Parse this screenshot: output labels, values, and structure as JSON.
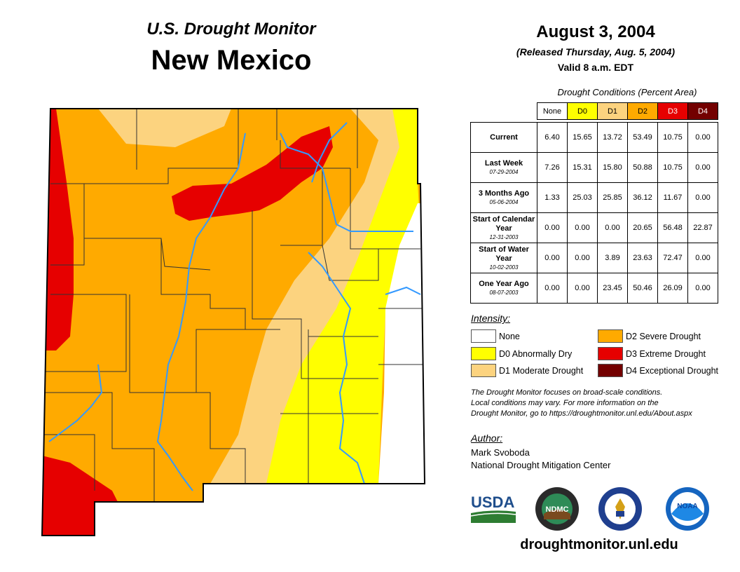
{
  "header": {
    "subtitle": "U.S. Drought Monitor",
    "state": "New Mexico",
    "date": "August 3, 2004",
    "released": "(Released Thursday, Aug. 5, 2004)",
    "valid": "Valid 8 a.m. EDT"
  },
  "table": {
    "caption": "Drought Conditions (Percent Area)",
    "columns": [
      {
        "label": "None",
        "color": "#ffffff"
      },
      {
        "label": "D0",
        "color": "#ffff00"
      },
      {
        "label": "D1",
        "color": "#fcd37f"
      },
      {
        "label": "D2",
        "color": "#ffaa00"
      },
      {
        "label": "D3",
        "color": "#e60000"
      },
      {
        "label": "D4",
        "color": "#730000"
      }
    ],
    "rows": [
      {
        "label": "Current",
        "date": "",
        "values": [
          "6.40",
          "15.65",
          "13.72",
          "53.49",
          "10.75",
          "0.00"
        ]
      },
      {
        "label": "Last Week",
        "date": "07-29-2004",
        "values": [
          "7.26",
          "15.31",
          "15.80",
          "50.88",
          "10.75",
          "0.00"
        ]
      },
      {
        "label": "3 Months Ago",
        "date": "05-06-2004",
        "values": [
          "1.33",
          "25.03",
          "25.85",
          "36.12",
          "11.67",
          "0.00"
        ]
      },
      {
        "label": "Start of Calendar Year",
        "date": "12-31-2003",
        "values": [
          "0.00",
          "0.00",
          "0.00",
          "20.65",
          "56.48",
          "22.87"
        ]
      },
      {
        "label": "Start of Water Year",
        "date": "10-02-2003",
        "values": [
          "0.00",
          "0.00",
          "3.89",
          "23.63",
          "72.47",
          "0.00"
        ]
      },
      {
        "label": "One Year Ago",
        "date": "08-07-2003",
        "values": [
          "0.00",
          "0.00",
          "23.45",
          "50.46",
          "26.09",
          "0.00"
        ]
      }
    ]
  },
  "legend": {
    "title": "Intensity:",
    "items": [
      {
        "label": "None",
        "color": "#ffffff"
      },
      {
        "label": "D0 Abnormally Dry",
        "color": "#ffff00"
      },
      {
        "label": "D1 Moderate Drought",
        "color": "#fcd37f"
      },
      {
        "label": "D2 Severe Drought",
        "color": "#ffaa00"
      },
      {
        "label": "D3 Extreme Drought",
        "color": "#e60000"
      },
      {
        "label": "D4 Exceptional Drought",
        "color": "#730000"
      }
    ]
  },
  "note": {
    "line1": "The Drought Monitor focuses on broad-scale conditions.",
    "line2": "Local conditions may vary. For more information on the",
    "line3": "Drought Monitor, go to https://droughtmonitor.unl.edu/About.aspx"
  },
  "author": {
    "title": "Author:",
    "name": "Mark Svoboda",
    "org": "National Drought Mitigation Center"
  },
  "logos": {
    "usda": "USDA",
    "ndmc": "NDMC",
    "noaa": "NOAA"
  },
  "url": "droughtmonitor.unl.edu",
  "colors": {
    "none": "#ffffff",
    "d0": "#ffff00",
    "d1": "#fcd37f",
    "d2": "#ffaa00",
    "d3": "#e60000",
    "d4": "#730000",
    "river": "#3399ff"
  }
}
